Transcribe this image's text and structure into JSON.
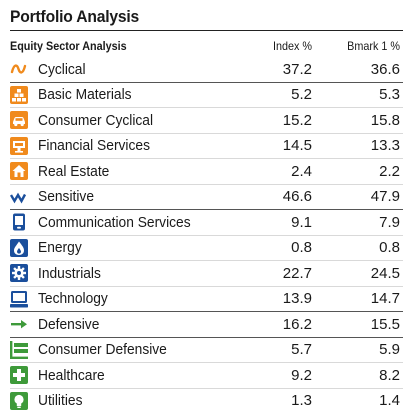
{
  "title": "Portfolio Analysis",
  "header": {
    "section_label": "Equity Sector Analysis",
    "col_index": "Index %",
    "col_bmark": "Bmark 1 %"
  },
  "colors": {
    "cyclical": "#f08a1c",
    "sensitive": "#1b4f9c",
    "defensive": "#3e9a3a"
  },
  "rows": [
    {
      "name": "Cyclical",
      "index": "37.2",
      "bmark": "36.6",
      "icon": "cyclical-wave-icon",
      "type": "super"
    },
    {
      "name": "Basic Materials",
      "index": "5.2",
      "bmark": "5.3",
      "icon": "basic-materials-icon",
      "type": "sub"
    },
    {
      "name": "Consumer Cyclical",
      "index": "15.2",
      "bmark": "15.8",
      "icon": "car-icon",
      "type": "sub"
    },
    {
      "name": "Financial Services",
      "index": "14.5",
      "bmark": "13.3",
      "icon": "financial-services-icon",
      "type": "sub"
    },
    {
      "name": "Real Estate",
      "index": "2.4",
      "bmark": "2.2",
      "icon": "house-icon",
      "type": "sub"
    },
    {
      "name": "Sensitive",
      "index": "46.6",
      "bmark": "47.9",
      "icon": "sensitive-zigzag-icon",
      "type": "super"
    },
    {
      "name": "Communication Services",
      "index": "9.1",
      "bmark": "7.9",
      "icon": "phone-icon",
      "type": "sub"
    },
    {
      "name": "Energy",
      "index": "0.8",
      "bmark": "0.8",
      "icon": "flame-icon",
      "type": "sub"
    },
    {
      "name": "Industrials",
      "index": "22.7",
      "bmark": "24.5",
      "icon": "gear-icon",
      "type": "sub"
    },
    {
      "name": "Technology",
      "index": "13.9",
      "bmark": "14.7",
      "icon": "computer-icon",
      "type": "sub"
    },
    {
      "name": "Defensive",
      "index": "16.2",
      "bmark": "15.5",
      "icon": "arrow-right-icon",
      "type": "super"
    },
    {
      "name": "Consumer Defensive",
      "index": "5.7",
      "bmark": "5.9",
      "icon": "shopping-cart-icon",
      "type": "sub"
    },
    {
      "name": "Healthcare",
      "index": "9.2",
      "bmark": "8.2",
      "icon": "medical-cross-icon",
      "type": "sub"
    },
    {
      "name": "Utilities",
      "index": "1.3",
      "bmark": "1.4",
      "icon": "lightbulb-icon",
      "type": "sub"
    }
  ]
}
